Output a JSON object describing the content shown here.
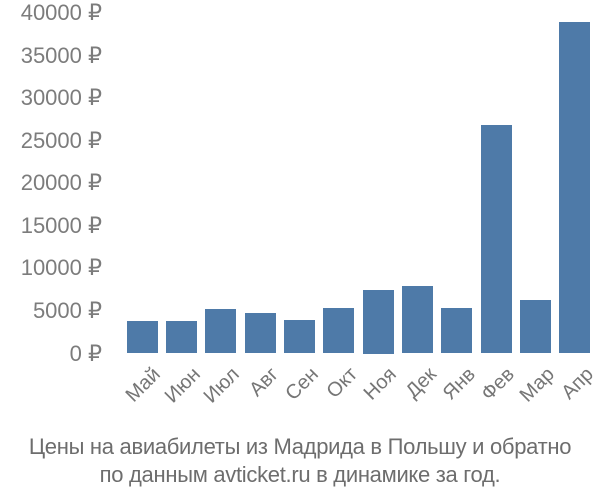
{
  "chart_data": {
    "type": "bar",
    "title": "",
    "categories": [
      "Май",
      "Июн",
      "Июл",
      "Авг",
      "Сен",
      "Окт",
      "Ноя",
      "Дек",
      "Янв",
      "Фев",
      "Мар",
      "Апр"
    ],
    "values": [
      3800,
      3800,
      5200,
      4700,
      3900,
      5400,
      7500,
      7900,
      5300,
      26800,
      6300,
      39000
    ],
    "y_ticks": [
      0,
      5000,
      10000,
      15000,
      20000,
      25000,
      30000,
      35000,
      40000
    ],
    "y_tick_labels": [
      "0 ₽",
      "5000 ₽",
      "10000 ₽",
      "15000 ₽",
      "20000 ₽",
      "25000 ₽",
      "30000 ₽",
      "35000 ₽",
      "40000 ₽"
    ],
    "ylim": [
      0,
      40000
    ],
    "grid": false,
    "legend": "none",
    "currency": "₽",
    "bar_color": "#4e7aa8",
    "y_label_color": "#7c7c7c",
    "x_label_color": "#767676",
    "caption_color": "#6d6d6d",
    "background_color": "#ffffff"
  },
  "caption": {
    "line1": "Цены на авиабилеты из Мадрида в Польшу и обратно",
    "line2": "по данным avticket.ru в динамике за год."
  }
}
